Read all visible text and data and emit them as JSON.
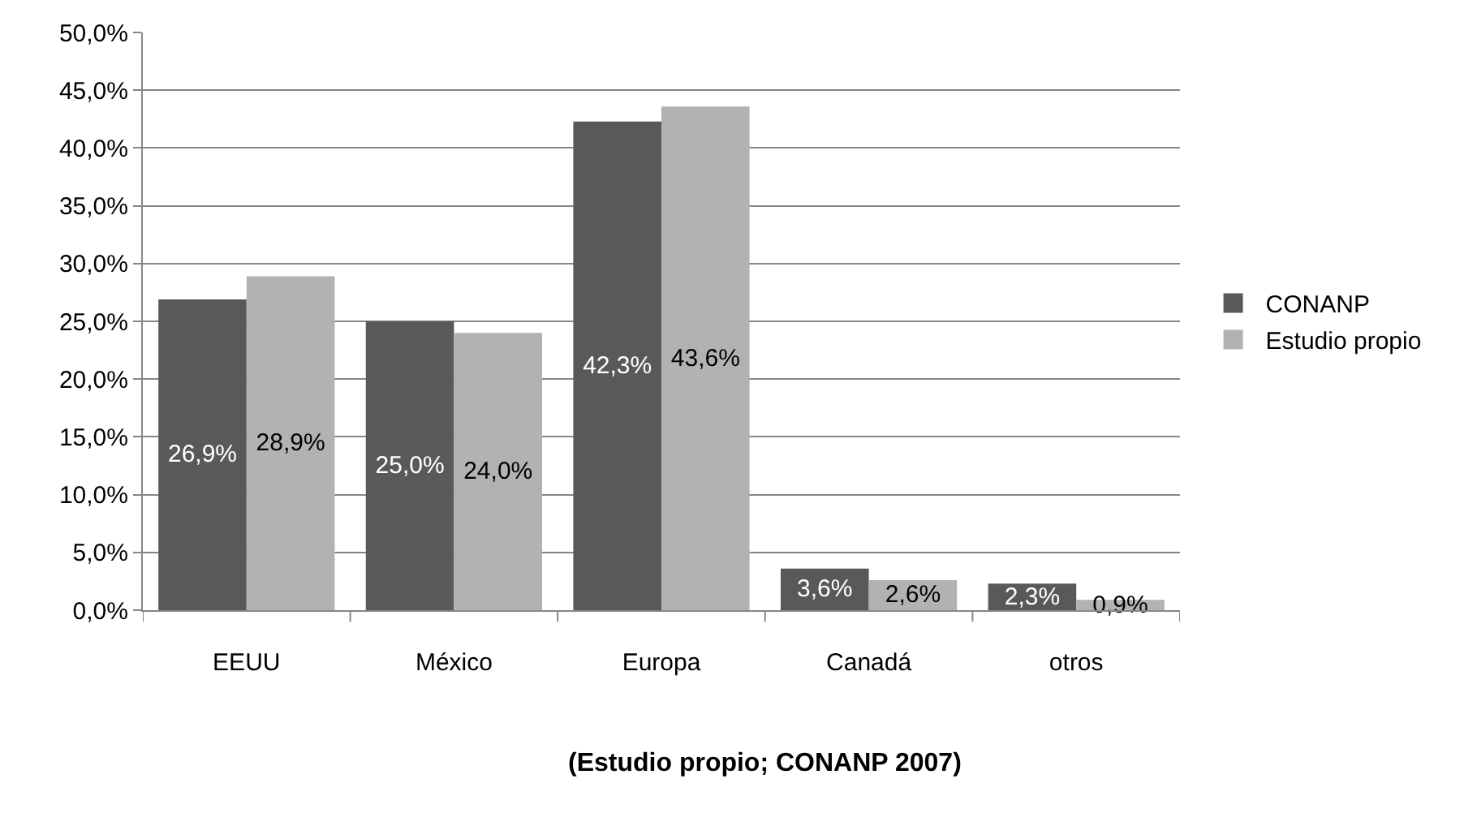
{
  "chart_data": {
    "type": "bar",
    "categories": [
      "EEUU",
      "México",
      "Europa",
      "Canadá",
      "otros"
    ],
    "series": [
      {
        "name": "CONANP",
        "color": "#595959",
        "values": [
          26.9,
          25.0,
          42.3,
          3.6,
          2.3
        ],
        "value_labels": [
          "26,9%",
          "25,0%",
          "42,3%",
          "3,6%",
          "2,3%"
        ]
      },
      {
        "name": "Estudio propio",
        "color": "#b2b2b2",
        "values": [
          28.9,
          24.0,
          43.6,
          2.6,
          0.9
        ],
        "value_labels": [
          "28,9%",
          "24,0%",
          "43,6%",
          "2,6%",
          "0,9%"
        ]
      }
    ],
    "ylim": [
      0,
      50
    ],
    "yticks": [
      {
        "value": 0,
        "label": "0,0%"
      },
      {
        "value": 5,
        "label": "5,0%"
      },
      {
        "value": 10,
        "label": "10,0%"
      },
      {
        "value": 15,
        "label": "15,0%"
      },
      {
        "value": 20,
        "label": "20,0%"
      },
      {
        "value": 25,
        "label": "25,0%"
      },
      {
        "value": 30,
        "label": "30,0%"
      },
      {
        "value": 35,
        "label": "35,0%"
      },
      {
        "value": 40,
        "label": "40,0%"
      },
      {
        "value": 45,
        "label": "45,0%"
      },
      {
        "value": 50,
        "label": "50,0%"
      }
    ],
    "grid": "y",
    "legend": "right",
    "annotations": [
      "(Estudio propio; CONANP 2007)"
    ]
  }
}
